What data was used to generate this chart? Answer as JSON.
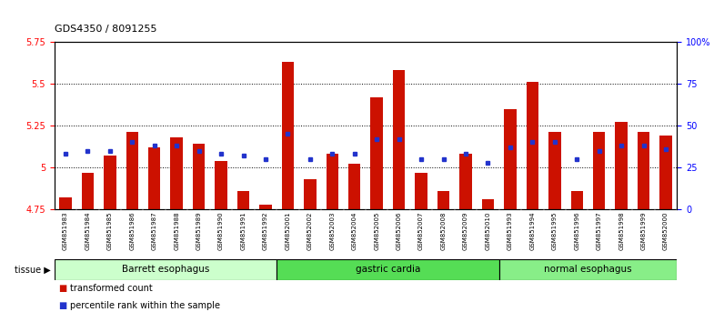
{
  "title": "GDS4350 / 8091255",
  "samples": [
    "GSM851983",
    "GSM851984",
    "GSM851985",
    "GSM851986",
    "GSM851987",
    "GSM851988",
    "GSM851989",
    "GSM851990",
    "GSM851991",
    "GSM851992",
    "GSM852001",
    "GSM852002",
    "GSM852003",
    "GSM852004",
    "GSM852005",
    "GSM852006",
    "GSM852007",
    "GSM852008",
    "GSM852009",
    "GSM852010",
    "GSM851993",
    "GSM851994",
    "GSM851995",
    "GSM851996",
    "GSM851997",
    "GSM851998",
    "GSM851999",
    "GSM852000"
  ],
  "red_values": [
    4.82,
    4.97,
    5.07,
    5.21,
    5.12,
    5.18,
    5.14,
    5.04,
    4.86,
    4.78,
    5.63,
    4.93,
    5.08,
    5.02,
    5.42,
    5.58,
    4.97,
    4.86,
    5.08,
    4.81,
    5.35,
    5.51,
    5.21,
    4.86,
    5.21,
    5.27,
    5.21,
    5.19
  ],
  "blue_percentiles": [
    33,
    35,
    35,
    40,
    38,
    38,
    35,
    33,
    32,
    30,
    45,
    30,
    33,
    33,
    42,
    42,
    30,
    30,
    33,
    28,
    37,
    40,
    40,
    30,
    35,
    38,
    38,
    36
  ],
  "ylim_left": [
    4.75,
    5.75
  ],
  "ylim_right": [
    0,
    100
  ],
  "yticks_left": [
    4.75,
    5.0,
    5.25,
    5.5,
    5.75
  ],
  "yticks_right": [
    0,
    25,
    50,
    75,
    100
  ],
  "ytick_labels_left": [
    "4.75",
    "5",
    "5.25",
    "5.5",
    "5.75"
  ],
  "ytick_labels_right": [
    "0",
    "25",
    "50",
    "75",
    "100%"
  ],
  "groups": [
    {
      "name": "Barrett esophagus",
      "start": 0,
      "end": 10,
      "color": "#ccffcc"
    },
    {
      "name": "gastric cardia",
      "start": 10,
      "end": 20,
      "color": "#55dd55"
    },
    {
      "name": "normal esophagus",
      "start": 20,
      "end": 28,
      "color": "#88ee88"
    }
  ],
  "bar_color": "#cc1100",
  "blue_color": "#2233cc",
  "bar_width": 0.55,
  "bg_color": "#ffffff",
  "grid_color": "#000000",
  "tissue_label": "tissue ▶",
  "legend_items": [
    {
      "label": "transformed count",
      "color": "#cc1100"
    },
    {
      "label": "percentile rank within the sample",
      "color": "#2233cc"
    }
  ],
  "xticklabel_bg": "#c8c8c8",
  "dotgrid_values": [
    5.0,
    5.25,
    5.5
  ]
}
